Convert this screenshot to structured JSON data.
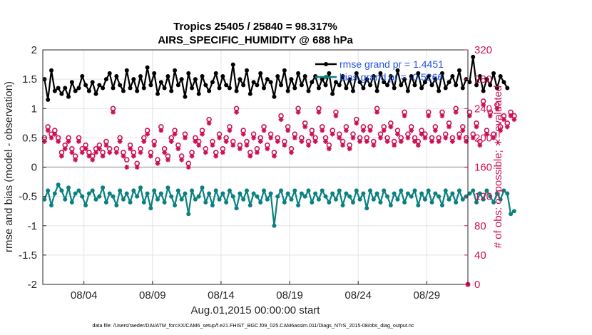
{
  "chart_data": {
    "type": "line",
    "title": "Tropics 25405 / 25840 = 98.317%",
    "subtitle": "AIRS_SPECIFIC_HUMIDITY @ 688 hPa",
    "xlabel": "Aug.01,2015 00:00:00 start",
    "ylabel_left": "rmse and bias (model - observation)",
    "ylabel_right": "# of obs: o=possible; ∗=evaluated",
    "footer": "data file: /Users/raeder/DAI/ATM_forcXX/CAM6_setup/f.e21.FHIST_BGC.f09_025.CAM6assim.011/Diags_NTrS_2015-08/obs_diag_output.nc",
    "x_ticks": [
      "08/04",
      "08/09",
      "08/14",
      "08/19",
      "08/24",
      "08/29"
    ],
    "x_tick_days": [
      4,
      9,
      14,
      19,
      24,
      29
    ],
    "xlim": [
      1,
      32
    ],
    "ylim_left": [
      -2,
      2
    ],
    "yticks_left": [
      "-2",
      "-1.5",
      "-1",
      "-0.5",
      "0",
      "0.5",
      "1",
      "1.5",
      "2"
    ],
    "ylim_right": [
      0,
      320
    ],
    "yticks_right": [
      "0",
      "40",
      "80",
      "120",
      "160",
      "200",
      "240",
      "280",
      "320"
    ],
    "legend": [
      {
        "label": "rmse grand pr = 1.4451",
        "color": "#000000"
      },
      {
        "label": "bias grand pr = -0.5266",
        "color": "#0b7f7f"
      }
    ],
    "colors": {
      "rmse": "#000000",
      "bias": "#0b8080",
      "obs": "#cc1155",
      "zero": "#b0b0b0"
    },
    "series": [
      {
        "name": "rmse",
        "axis": "left",
        "values": [
          1.5,
          1.15,
          1.65,
          1.3,
          1.35,
          1.25,
          1.35,
          1.2,
          1.45,
          1.3,
          1.35,
          1.55,
          1.4,
          1.3,
          1.45,
          1.25,
          1.4,
          1.35,
          1.5,
          1.6,
          1.35,
          1.55,
          1.4,
          1.3,
          1.65,
          1.35,
          1.5,
          1.3,
          1.55,
          1.35,
          1.7,
          1.4,
          1.6,
          1.25,
          1.45,
          1.35,
          1.55,
          1.3,
          1.65,
          1.4,
          1.5,
          1.2,
          1.6,
          1.35,
          1.5,
          1.25,
          1.55,
          1.4,
          1.3,
          1.45,
          1.6,
          1.35,
          1.55,
          1.4,
          1.35,
          1.75,
          1.3,
          1.5,
          1.4,
          1.65,
          1.25,
          1.45,
          1.4,
          1.6,
          1.35,
          1.5,
          1.45,
          1.2,
          1.55,
          1.4,
          1.65,
          1.3,
          1.5,
          1.35,
          1.6,
          1.4,
          1.55,
          1.3,
          1.45,
          1.55,
          1.35,
          1.5,
          1.4,
          1.6,
          1.25,
          1.45,
          1.4,
          1.55,
          1.35,
          1.5,
          1.3,
          1.6,
          1.45,
          1.35,
          1.5,
          1.4,
          1.55,
          1.3,
          1.6,
          1.45,
          1.4,
          1.55,
          1.35,
          1.65,
          1.4,
          1.5,
          1.3,
          1.55,
          1.4,
          1.6,
          1.35,
          1.45,
          1.55,
          1.4,
          1.5,
          1.3,
          1.6,
          1.35,
          1.45,
          1.55,
          1.4,
          1.65,
          1.35,
          1.5,
          1.45,
          1.88,
          1.4,
          1.55,
          1.3,
          1.5,
          1.4,
          1.6,
          1.35,
          1.55,
          1.45,
          1.35
        ]
      },
      {
        "name": "bias",
        "axis": "left",
        "values": [
          -0.55,
          -0.4,
          -0.65,
          -0.45,
          -0.3,
          -0.4,
          -0.55,
          -0.35,
          -0.6,
          -0.45,
          -0.4,
          -0.5,
          -0.65,
          -0.45,
          -0.4,
          -0.55,
          -0.5,
          -0.35,
          -0.6,
          -0.45,
          -0.5,
          -0.65,
          -0.4,
          -0.55,
          -0.45,
          -0.6,
          -0.4,
          -0.5,
          -0.35,
          -0.6,
          -0.45,
          -0.7,
          -0.4,
          -0.55,
          -0.45,
          -0.6,
          -0.35,
          -0.5,
          -0.65,
          -0.4,
          -0.55,
          -0.45,
          -0.8,
          -0.4,
          -0.55,
          -0.5,
          -0.35,
          -0.6,
          -0.45,
          -0.65,
          -0.4,
          -0.55,
          -0.45,
          -0.6,
          -0.4,
          -0.5,
          -0.7,
          -0.45,
          -0.55,
          -0.4,
          -0.65,
          -0.45,
          -0.5,
          -0.6,
          -0.4,
          -0.55,
          -0.45,
          -1.0,
          -0.5,
          -0.4,
          -0.6,
          -0.45,
          -0.55,
          -0.4,
          -0.65,
          -0.45,
          -0.5,
          -0.4,
          -0.6,
          -0.45,
          -0.55,
          -0.4,
          -0.5,
          -0.6,
          -0.45,
          -0.55,
          -0.4,
          -0.65,
          -0.45,
          -0.5,
          -0.6,
          -0.4,
          -0.55,
          -0.45,
          -0.7,
          -0.4,
          -0.55,
          -0.45,
          -0.6,
          -0.4,
          -0.5,
          -0.65,
          -0.45,
          -0.55,
          -0.4,
          -0.6,
          -0.45,
          -0.5,
          -0.4,
          -0.65,
          -0.45,
          -0.55,
          -0.4,
          -0.6,
          -0.45,
          -0.5,
          -0.65,
          -0.4,
          -0.55,
          -0.45,
          -0.6,
          -0.4,
          -0.55,
          -0.5,
          -0.45,
          -0.4,
          -0.6,
          -0.45,
          -0.55,
          -0.4,
          -0.5,
          -0.6,
          -0.45,
          -0.55,
          -0.4,
          -0.45,
          -0.8,
          -0.75
        ]
      },
      {
        "name": "obs possible",
        "axis": "right",
        "marker": "o",
        "values": [
          200,
          215,
          205,
          210,
          200,
          180,
          190,
          200,
          185,
          175,
          200,
          185,
          190,
          180,
          175,
          185,
          190,
          180,
          195,
          185,
          240,
          185,
          200,
          180,
          170,
          190,
          180,
          165,
          185,
          200,
          210,
          180,
          195,
          170,
          215,
          185,
          175,
          200,
          210,
          190,
          175,
          205,
          165,
          180,
          200,
          195,
          210,
          185,
          225,
          195,
          180,
          205,
          185,
          200,
          215,
          195,
          240,
          190,
          210,
          195,
          180,
          205,
          185,
          200,
          215,
          190,
          205,
          180,
          200,
          230,
          195,
          215,
          185,
          205,
          240,
          200,
          220,
          195,
          210,
          200,
          240,
          215,
          200,
          190,
          210,
          235,
          205,
          195,
          215,
          190,
          205,
          225,
          200,
          215,
          200,
          215,
          195,
          240,
          205,
          215,
          200,
          220,
          195,
          210,
          200,
          235,
          205,
          215,
          200,
          195,
          210,
          205,
          235,
          200,
          215,
          200,
          235,
          205,
          220,
          200,
          240,
          205,
          215,
          200,
          235,
          205,
          220,
          195,
          250,
          210,
          235,
          205,
          245,
          215,
          230,
          220,
          235,
          230
        ]
      },
      {
        "name": "obs evaluated",
        "axis": "right",
        "marker": "*",
        "values": [
          195,
          210,
          200,
          205,
          195,
          175,
          185,
          195,
          180,
          170,
          195,
          180,
          185,
          175,
          170,
          180,
          185,
          175,
          190,
          180,
          235,
          180,
          195,
          175,
          160,
          185,
          175,
          160,
          180,
          195,
          205,
          175,
          190,
          165,
          210,
          180,
          170,
          195,
          205,
          185,
          170,
          200,
          160,
          175,
          195,
          190,
          205,
          180,
          220,
          190,
          175,
          200,
          180,
          195,
          210,
          190,
          235,
          185,
          205,
          190,
          175,
          200,
          180,
          195,
          210,
          185,
          200,
          175,
          195,
          225,
          190,
          210,
          180,
          200,
          235,
          195,
          215,
          190,
          205,
          195,
          235,
          210,
          195,
          185,
          205,
          230,
          200,
          190,
          210,
          185,
          200,
          220,
          195,
          210,
          195,
          210,
          190,
          235,
          200,
          210,
          195,
          215,
          190,
          205,
          195,
          230,
          200,
          210,
          195,
          190,
          205,
          200,
          230,
          195,
          210,
          195,
          230,
          200,
          215,
          195,
          235,
          200,
          210,
          195,
          230,
          200,
          215,
          190,
          245,
          205,
          230,
          200,
          240,
          210,
          225,
          215,
          230,
          225
        ]
      }
    ]
  }
}
